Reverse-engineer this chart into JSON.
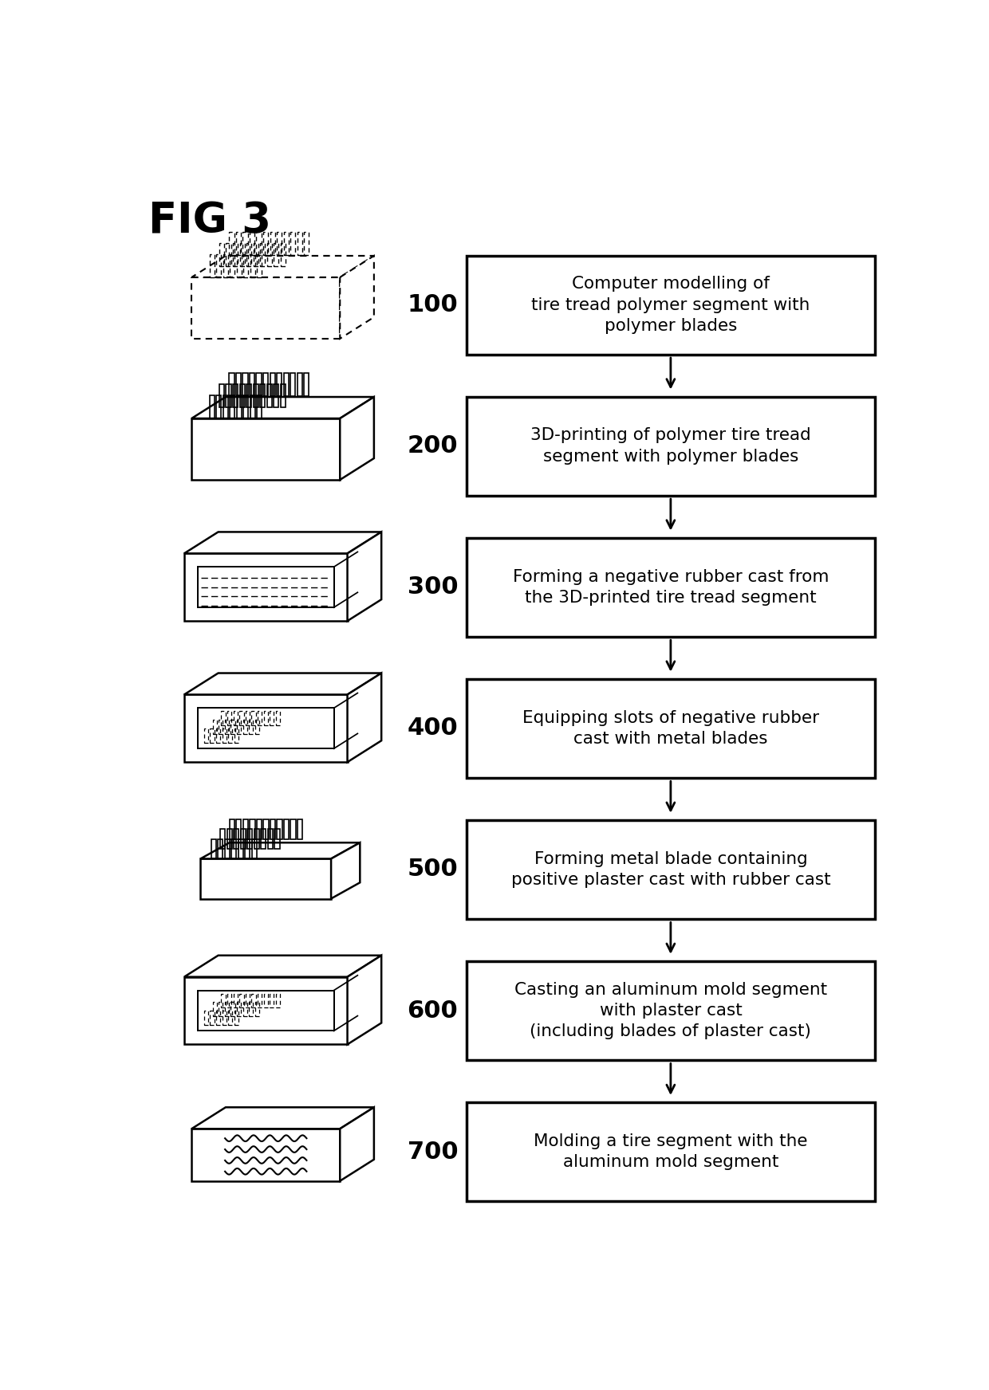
{
  "title": "FIG 3",
  "background_color": "#ffffff",
  "steps": [
    {
      "number": "100",
      "text": "Computer modelling of\ntire tread polymer segment with\npolymer blades",
      "shape": "dashed_box_with_blades_top"
    },
    {
      "number": "200",
      "text": "3D-printing of polymer tire tread\nsegment with polymer blades",
      "shape": "solid_box_with_blades_top"
    },
    {
      "number": "300",
      "text": "Forming a negative rubber cast from\nthe 3D-printed tire tread segment",
      "shape": "open_tray_with_lines"
    },
    {
      "number": "400",
      "text": "Equipping slots of negative rubber\ncast with metal blades",
      "shape": "open_tray_with_dashed_blades"
    },
    {
      "number": "500",
      "text": "Forming metal blade containing\npositive plaster cast with rubber cast",
      "shape": "solid_block_with_blades_top"
    },
    {
      "number": "600",
      "text": "Casting an aluminum mold segment\nwith plaster cast\n(including blades of plaster cast)",
      "shape": "open_tray_with_solid_blades"
    },
    {
      "number": "700",
      "text": "Molding a tire segment with the\naluminum mold segment",
      "shape": "solid_block_wavy"
    }
  ],
  "fig_width": 12.4,
  "fig_height": 17.44
}
